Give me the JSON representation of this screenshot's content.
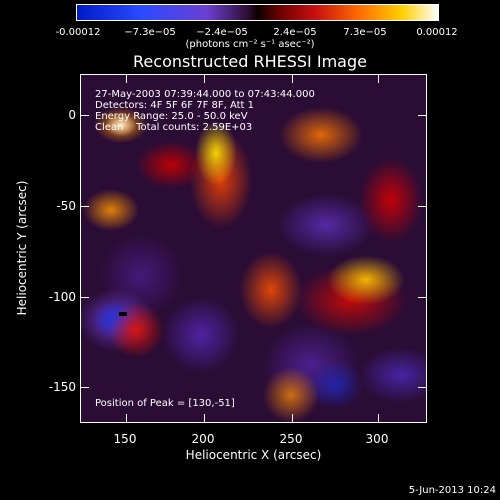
{
  "colorbar": {
    "ticks": [
      "-0.00012",
      "−7.3e−05",
      "−2.4e−05",
      "2.4e−05",
      "7.3e−05",
      "0.00012"
    ],
    "units": "(photons cm⁻² s⁻¹ asec⁻²)"
  },
  "title": "Reconstructed RHESSI Image",
  "overlay": {
    "time_range": "27-May-2003 07:39:44.000 to 07:43:44.000",
    "detectors": "Detectors: 4F 5F 6F 7F 8F, Att 1",
    "energy": "Energy Range: 25.0 - 50.0 keV",
    "method": "Clean    Total counts: 2.59E+03",
    "peak": "Position of Peak = [130,-51]"
  },
  "axes": {
    "xlabel": "Heliocentric X (arcsec)",
    "ylabel": "Heliocentric Y (arcsec)",
    "xticks": [
      "150",
      "200",
      "250",
      "300"
    ],
    "yticks": [
      "0",
      "-50",
      "-100",
      "-150"
    ]
  },
  "timestamp": "5-Jun-2013 10:24"
}
